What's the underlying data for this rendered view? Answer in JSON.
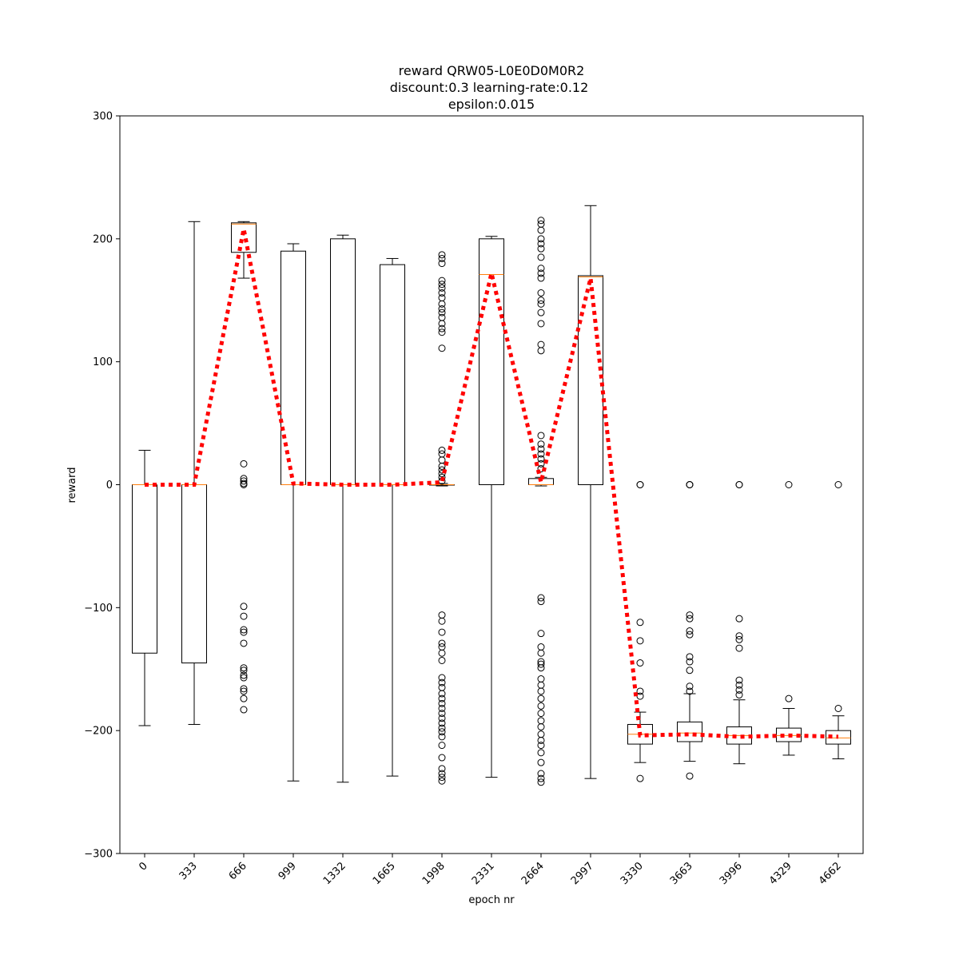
{
  "chart_data": {
    "type": "box",
    "title_lines": [
      "reward QRW05-L0E0D0M0R2",
      "discount:0.3 learning-rate:0.12",
      "epsilon:0.015"
    ],
    "xlabel": "epoch nr",
    "ylabel": "reward",
    "ylim": [
      -300,
      300
    ],
    "yticks": [
      -300,
      -200,
      -100,
      0,
      100,
      200,
      300
    ],
    "ytick_labels": [
      "−300",
      "−200",
      "−100",
      "0",
      "100",
      "200",
      "300"
    ],
    "grid": false,
    "colors": {
      "box": "#000000",
      "median": "#ff7f0e",
      "mean_line": "#ff0000",
      "outlier": "#000000"
    },
    "categories": [
      "0",
      "333",
      "666",
      "999",
      "1332",
      "1665",
      "1998",
      "2331",
      "2664",
      "2997",
      "3330",
      "3663",
      "3996",
      "4329",
      "4662"
    ],
    "boxes": [
      {
        "label": "0",
        "whisker_low": -196,
        "q1": -137,
        "median": 0,
        "q3": 0,
        "whisker_high": 28,
        "outliers": []
      },
      {
        "label": "333",
        "whisker_low": -195,
        "q1": -145,
        "median": 0,
        "q3": 0,
        "whisker_high": 214,
        "outliers": []
      },
      {
        "label": "666",
        "whisker_low": 168,
        "q1": 189,
        "median": 212,
        "q3": 213,
        "whisker_high": 214,
        "outliers": [
          17,
          5,
          3,
          1,
          0,
          -99,
          -107,
          -118,
          -120,
          -129,
          -149,
          -151,
          -155,
          -157,
          -166,
          -168,
          -174,
          -183
        ]
      },
      {
        "label": "999",
        "whisker_low": -241,
        "q1": 0,
        "median": 0,
        "q3": 190,
        "whisker_high": 196,
        "outliers": []
      },
      {
        "label": "1332",
        "whisker_low": -242,
        "q1": 0,
        "median": 0,
        "q3": 200,
        "whisker_high": 203,
        "outliers": []
      },
      {
        "label": "1665",
        "whisker_low": -237,
        "q1": 0,
        "median": 0,
        "q3": 179,
        "whisker_high": 184,
        "outliers": []
      },
      {
        "label": "1998",
        "whisker_low": -1,
        "q1": 0,
        "median": 0,
        "q3": 0,
        "whisker_high": 1,
        "outliers": [
          187,
          184,
          180,
          166,
          163,
          160,
          156,
          152,
          147,
          143,
          140,
          136,
          131,
          127,
          124,
          111,
          28,
          25,
          20,
          15,
          12,
          9,
          6,
          3,
          -106,
          -111,
          -120,
          -129,
          -132,
          -137,
          -143,
          -157,
          -161,
          -165,
          -170,
          -174,
          -178,
          -182,
          -186,
          -190,
          -194,
          -198,
          -201,
          -205,
          -212,
          -222,
          -231,
          -235,
          -238,
          -241
        ]
      },
      {
        "label": "2331",
        "whisker_low": -238,
        "q1": 0,
        "median": 171,
        "q3": 200,
        "whisker_high": 202,
        "outliers": []
      },
      {
        "label": "2664",
        "whisker_low": -1,
        "q1": 0,
        "median": 0,
        "q3": 5,
        "whisker_high": 6,
        "outliers": [
          215,
          212,
          207,
          200,
          196,
          192,
          185,
          176,
          172,
          168,
          156,
          150,
          147,
          140,
          131,
          114,
          109,
          40,
          33,
          29,
          25,
          21,
          17,
          13,
          -92,
          -95,
          -121,
          -132,
          -137,
          -144,
          -146,
          -149,
          -158,
          -163,
          -168,
          -174,
          -180,
          -186,
          -192,
          -197,
          -203,
          -208,
          -212,
          -218,
          -226,
          -235,
          -239,
          -242
        ]
      },
      {
        "label": "2997",
        "whisker_low": -239,
        "q1": 0,
        "median": 169,
        "q3": 170,
        "whisker_high": 227,
        "outliers": []
      },
      {
        "label": "3330",
        "whisker_low": -226,
        "q1": -211,
        "median": -203,
        "q3": -195,
        "whisker_high": -185,
        "outliers": [
          0,
          0,
          -112,
          -127,
          -145,
          -168,
          -172,
          -239
        ]
      },
      {
        "label": "3663",
        "whisker_low": -225,
        "q1": -209,
        "median": -202,
        "q3": -193,
        "whisker_high": -170,
        "outliers": [
          0,
          0,
          0,
          -106,
          -109,
          -119,
          -122,
          -140,
          -144,
          -151,
          -164,
          -168,
          -237
        ]
      },
      {
        "label": "3996",
        "whisker_low": -227,
        "q1": -211,
        "median": -204,
        "q3": -197,
        "whisker_high": -175,
        "outliers": [
          0,
          0,
          -109,
          -123,
          -126,
          -133,
          -159,
          -163,
          -167,
          -171
        ]
      },
      {
        "label": "4329",
        "whisker_low": -220,
        "q1": -209,
        "median": -204,
        "q3": -198,
        "whisker_high": -182,
        "outliers": [
          0,
          -174
        ]
      },
      {
        "label": "4662",
        "whisker_low": -223,
        "q1": -211,
        "median": -206,
        "q3": -200,
        "whisker_high": -188,
        "outliers": [
          0,
          -182
        ]
      }
    ],
    "mean_line": {
      "style": "dotted",
      "values": [
        0,
        0,
        208,
        1,
        0,
        0,
        2,
        172,
        2,
        168,
        -204,
        -203,
        -205,
        -204,
        -205
      ]
    }
  }
}
